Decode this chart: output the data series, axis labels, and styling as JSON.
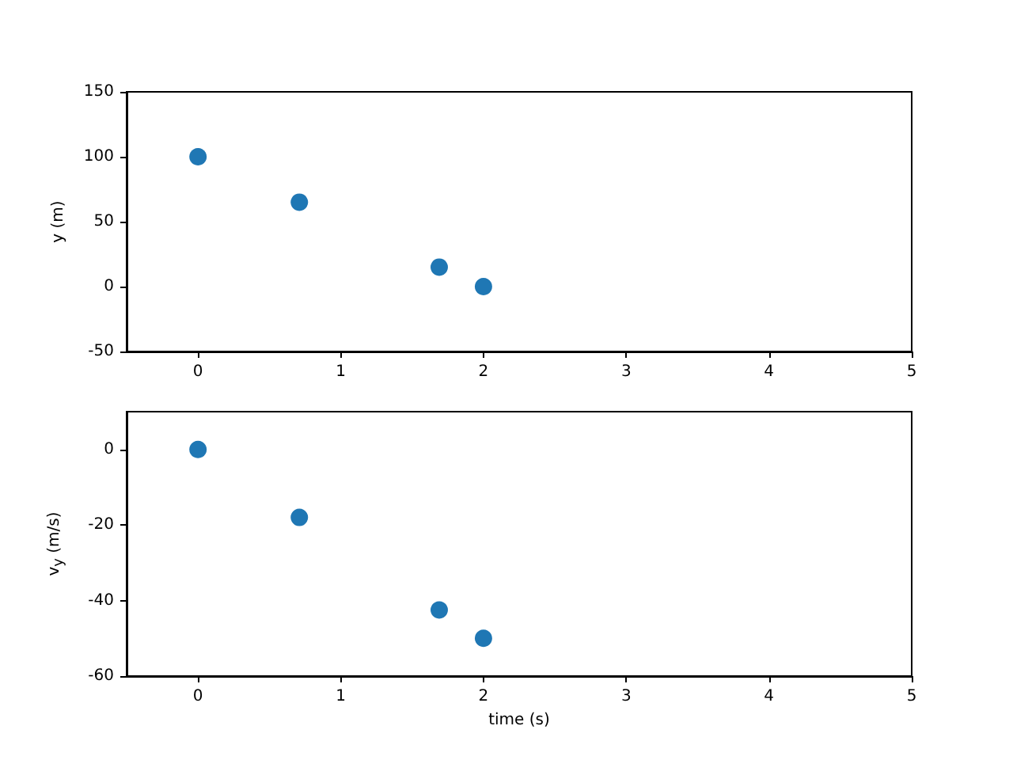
{
  "chart_data": [
    {
      "type": "scatter",
      "ylabel": "y (m)",
      "x": [
        0,
        0.71,
        1.69,
        2.0
      ],
      "values": [
        100,
        65,
        15,
        0
      ],
      "color": "#1f77b4",
      "marker": "circle",
      "grid": false,
      "xlim": [
        -0.5,
        5
      ],
      "xticks": [
        0,
        1,
        2,
        3,
        4,
        5
      ],
      "ylim": [
        -50,
        150
      ],
      "yticks": [
        -50,
        0,
        50,
        100,
        150
      ]
    },
    {
      "type": "scatter",
      "xlabel": "time (s)",
      "ylabel": "v$_{y}$ (m/s)",
      "x": [
        0,
        0.71,
        1.69,
        2.0
      ],
      "values": [
        0,
        -18,
        -42.5,
        -50
      ],
      "color": "#1f77b4",
      "marker": "circle",
      "grid": false,
      "xlim": [
        -0.5,
        5
      ],
      "xticks": [
        0,
        1,
        2,
        3,
        4,
        5
      ],
      "ylim": [
        -60,
        10
      ],
      "yticks": [
        -60,
        -40,
        -20,
        0
      ]
    }
  ]
}
